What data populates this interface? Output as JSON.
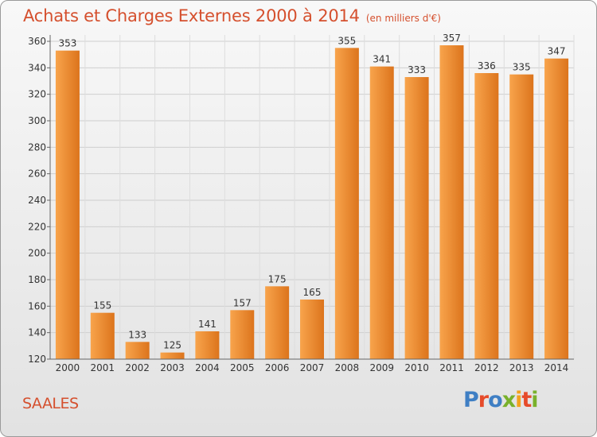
{
  "header": {
    "title": "Achats et Charges Externes 2000 à 2014",
    "subtitle": "(en milliers d'€)"
  },
  "footer": {
    "town": "SAALES",
    "logo": "Proxiti"
  },
  "colors": {
    "title": "#d5502e",
    "bar_light": "#f8a44c",
    "bar_dark": "#dc741c",
    "logo_letters": [
      "#3f7fc4",
      "#e64b2a",
      "#3f7fc4",
      "#79b12b",
      "#f3a21d",
      "#e64b2a",
      "#79b12b"
    ]
  },
  "chart_data": {
    "type": "bar",
    "title": "Achats et Charges Externes 2000 à 2014",
    "subtitle": "(en milliers d'€)",
    "categories": [
      "2000",
      "2001",
      "2002",
      "2003",
      "2004",
      "2005",
      "2006",
      "2007",
      "2008",
      "2009",
      "2010",
      "2011",
      "2012",
      "2013",
      "2014"
    ],
    "values": [
      353,
      155,
      133,
      125,
      141,
      157,
      175,
      165,
      355,
      341,
      333,
      357,
      336,
      335,
      347
    ],
    "ylim": [
      120,
      360
    ],
    "yticks": [
      120,
      140,
      160,
      180,
      200,
      220,
      240,
      260,
      280,
      300,
      320,
      340,
      360
    ],
    "grid": true,
    "legend": "none"
  }
}
